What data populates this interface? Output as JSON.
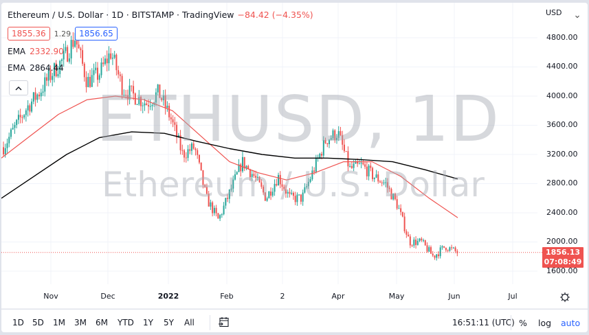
{
  "header": {
    "title": "Ethereum / U.S. Dollar · 1D · BITSTAMP · TradingView",
    "change": "−84.42 (−4.35%)",
    "bid": "1855.36",
    "spread": "1.29",
    "ask": "1856.65",
    "ema1_label": "EMA",
    "ema1_value": "2332.90",
    "ema2_label": "EMA",
    "ema2_value": "2864.44",
    "collapse_icon": "^"
  },
  "watermark": {
    "symbol": "ETHUSD, 1D",
    "description": "Ethereum / U.S. Dollar"
  },
  "y_axis": {
    "currency": "USD",
    "ticks": [
      "4800.00",
      "4400.00",
      "4000.00",
      "3600.00",
      "3200.00",
      "2800.00",
      "2400.00",
      "2000.00",
      "1600.00"
    ],
    "last_price": "1856.13",
    "countdown": "07:08:49"
  },
  "x_axis": {
    "ticks": [
      "Nov",
      "Dec",
      "2022",
      "Feb",
      "2",
      "Apr",
      "May",
      "Jun",
      "Jul"
    ]
  },
  "bottom_bar": {
    "ranges": [
      "1D",
      "5D",
      "1M",
      "3M",
      "6M",
      "YTD",
      "1Y",
      "5Y",
      "All"
    ],
    "clock": "16:51:11 (UTC)",
    "percent": "%",
    "log": "log",
    "auto": "auto"
  },
  "colors": {
    "up": "#26a69a",
    "down": "#ef5350",
    "ema_fast": "#ef5350",
    "ema_slow": "#000000",
    "accent": "#2962ff",
    "grid": "#f0f3fa"
  },
  "chart_data": {
    "type": "candlestick",
    "title": "Ethereum / U.S. Dollar · 1D · BITSTAMP",
    "xlabel": "",
    "ylabel": "USD",
    "ylim": [
      1400,
      4900
    ],
    "grid": true,
    "legend_position": "top-left",
    "x_ticks": [
      "Nov",
      "Dec",
      "2022",
      "Feb",
      "2",
      "Apr",
      "May",
      "Jun",
      "Jul"
    ],
    "y_ticks": [
      1600,
      2000,
      2400,
      2800,
      3200,
      3600,
      4000,
      4400,
      4800
    ],
    "last_price": 1856.13,
    "change": -84.42,
    "change_pct": -4.35,
    "series": [
      {
        "name": "EMA (fast)",
        "value": 2332.9,
        "color": "#ef5350"
      },
      {
        "name": "EMA (slow)",
        "value": 2864.44,
        "color": "#000000"
      }
    ],
    "close_path": [
      [
        "2021-10-01",
        3300
      ],
      [
        "2021-10-08",
        3580
      ],
      [
        "2021-10-15",
        3850
      ],
      [
        "2021-10-22",
        4050
      ],
      [
        "2021-10-29",
        4300
      ],
      [
        "2021-11-05",
        4500
      ],
      [
        "2021-11-10",
        4800
      ],
      [
        "2021-11-17",
        4200
      ],
      [
        "2021-11-24",
        4300
      ],
      [
        "2021-12-01",
        4600
      ],
      [
        "2021-12-04",
        4100
      ],
      [
        "2021-12-10",
        4000
      ],
      [
        "2021-12-17",
        3900
      ],
      [
        "2021-12-24",
        4050
      ],
      [
        "2021-12-31",
        3700
      ],
      [
        "2022-01-07",
        3200
      ],
      [
        "2022-01-14",
        3300
      ],
      [
        "2022-01-21",
        2600
      ],
      [
        "2022-01-24",
        2300
      ],
      [
        "2022-01-31",
        2700
      ],
      [
        "2022-02-07",
        3100
      ],
      [
        "2022-02-14",
        2900
      ],
      [
        "2022-02-21",
        2600
      ],
      [
        "2022-02-28",
        2900
      ],
      [
        "2022-03-07",
        2600
      ],
      [
        "2022-03-14",
        2600
      ],
      [
        "2022-03-21",
        3000
      ],
      [
        "2022-03-28",
        3400
      ],
      [
        "2022-04-03",
        3500
      ],
      [
        "2022-04-10",
        3000
      ],
      [
        "2022-04-17",
        3050
      ],
      [
        "2022-04-24",
        2900
      ],
      [
        "2022-05-01",
        2800
      ],
      [
        "2022-05-08",
        2500
      ],
      [
        "2022-05-12",
        2000
      ],
      [
        "2022-05-19",
        2000
      ],
      [
        "2022-05-26",
        1800
      ],
      [
        "2022-05-31",
        1940
      ],
      [
        "2022-06-01",
        1856
      ]
    ],
    "ema_fast_path": [
      3150,
      3450,
      3750,
      3950,
      4000,
      3950,
      3800,
      3450,
      3100,
      2950,
      2850,
      2950,
      3100,
      3100,
      2900,
      2600,
      2333
    ],
    "ema_slow_path": [
      2600,
      2900,
      3200,
      3430,
      3510,
      3490,
      3380,
      3280,
      3200,
      3150,
      3150,
      3130,
      3100,
      2990,
      2864
    ]
  }
}
